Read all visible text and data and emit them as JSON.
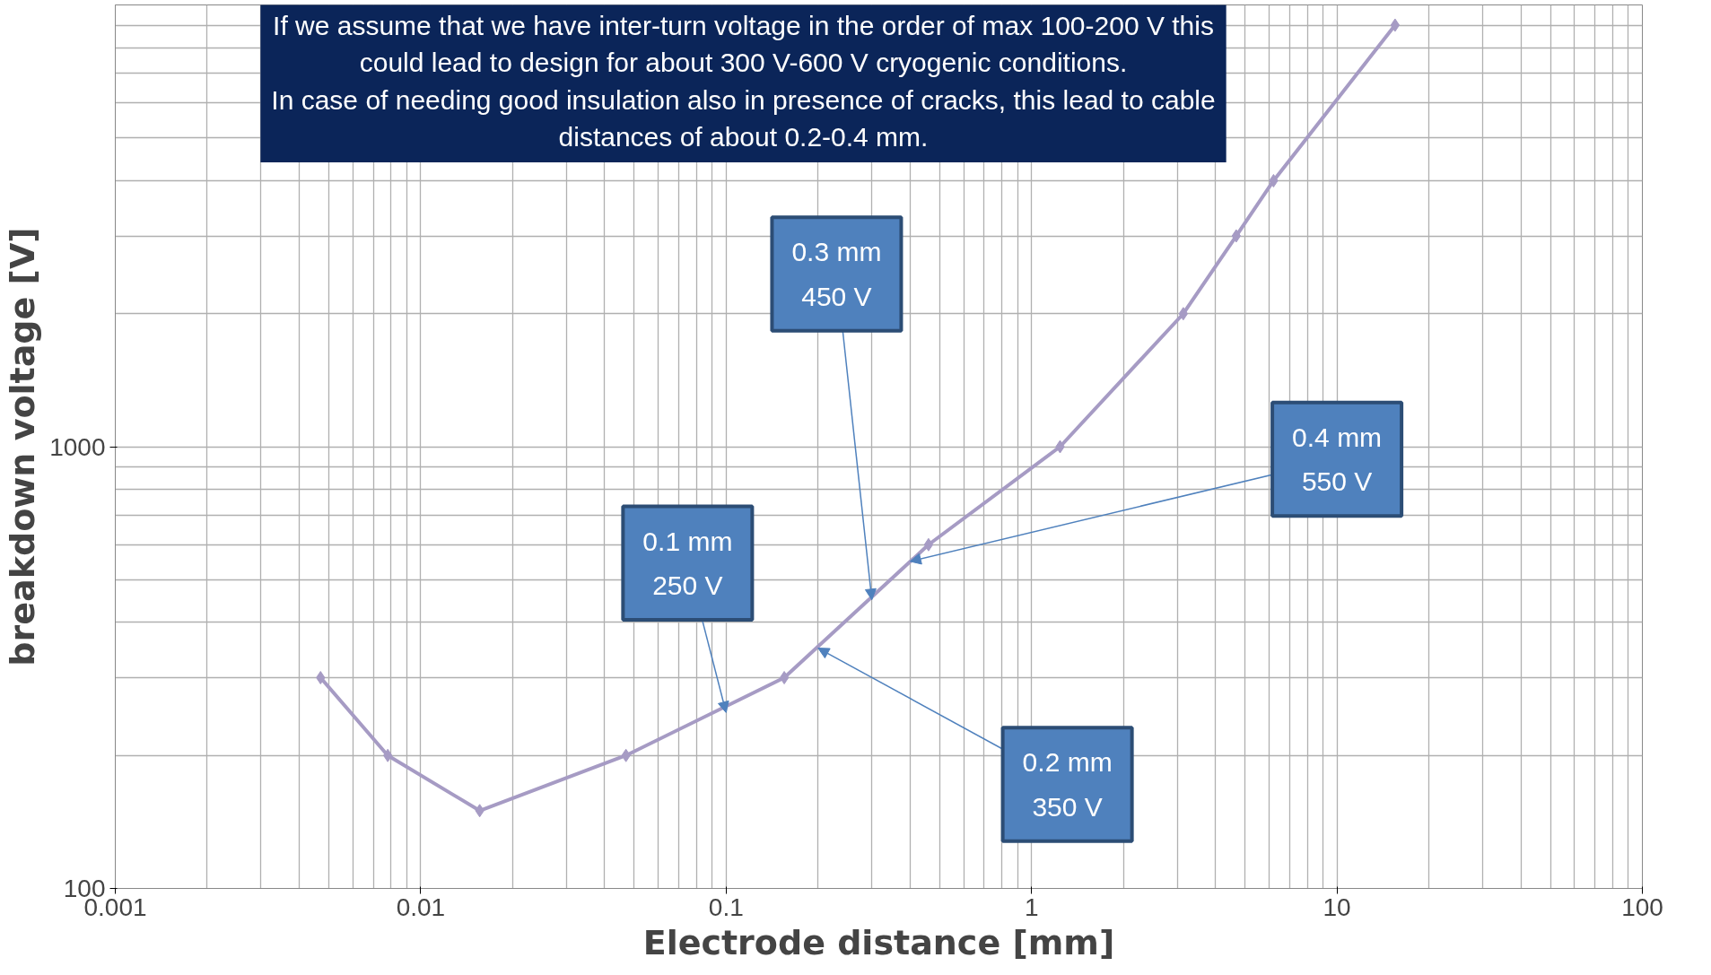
{
  "chart_data": {
    "type": "line",
    "xlabel": "Electrode distance [mm]",
    "ylabel": "breakdown voltage [V]",
    "x": [
      0.0047,
      0.0078,
      0.0156,
      0.047,
      0.155,
      0.46,
      1.24,
      3.14,
      4.68,
      6.2,
      15.5
    ],
    "series": [
      {
        "color": "#a69bc4",
        "values": [
          300,
          200,
          150,
          200,
          300,
          600,
          1000,
          2000,
          3000,
          4000,
          9000
        ]
      }
    ],
    "log": "xy",
    "marker": "diamond",
    "line_style": "solid",
    "grid": true,
    "xlim": [
      0.001,
      100
    ],
    "ylim": [
      100,
      10000
    ],
    "xticks": [
      {
        "value": 0.001,
        "label": "0.001"
      },
      {
        "value": 0.01,
        "label": "0.01"
      },
      {
        "value": 0.1,
        "label": "0.1"
      },
      1,
      10,
      100
    ],
    "yticks": [
      100,
      1000
    ],
    "annotations": [
      "If we assume that we have inter-turn voltage in the order of max 100-200 V this\ncould lead to design for about 300 V-600 V cryogenic conditions.\nIn case of needing good insulation also in presence of cracks, this lead to cable\ndistances of about 0.2-0.4 mm.",
      {
        "text": "0.1 mm\n250 V",
        "x": 0.1,
        "y": 250
      },
      {
        "text": "0.3 mm\n450 V",
        "x": 0.3,
        "y": 450
      },
      {
        "text": "0.4 mm\n550 V",
        "x": 0.4,
        "y": 550
      },
      {
        "text": "0.2 mm\n350 V",
        "x": 0.2,
        "y": 350
      }
    ]
  }
}
